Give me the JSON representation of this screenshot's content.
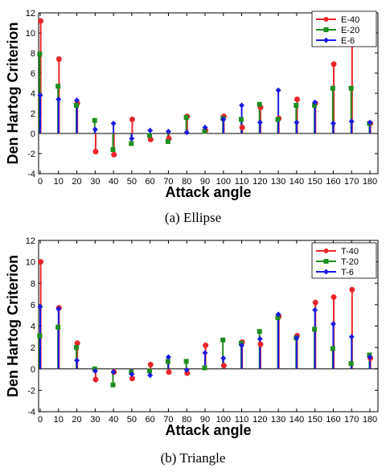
{
  "chart_data": [
    {
      "type": "stem",
      "caption": "(a) Ellipse",
      "xlabel": "Attack angle",
      "ylabel": "Den Hartog Criterion",
      "xlim": [
        0,
        180
      ],
      "ylim": [
        -4,
        12
      ],
      "xticks": [
        0,
        10,
        20,
        30,
        40,
        50,
        60,
        70,
        80,
        90,
        100,
        110,
        120,
        130,
        140,
        150,
        160,
        170,
        180
      ],
      "yticks": [
        -4,
        -2,
        0,
        2,
        4,
        6,
        8,
        10,
        12
      ],
      "legend_position": "top-right",
      "series": [
        {
          "name": "E-40",
          "color": "#e8262b",
          "marker": "circle",
          "offset": 0,
          "x": [
            0,
            10,
            20,
            30,
            40,
            50,
            60,
            70,
            80,
            90,
            100,
            110,
            120,
            130,
            140,
            150,
            160,
            170,
            180
          ],
          "values": [
            11.2,
            7.4,
            3.0,
            -1.8,
            -2.1,
            1.4,
            -0.6,
            -0.5,
            1.7,
            0.3,
            1.7,
            0.6,
            2.6,
            1.5,
            3.4,
            3.0,
            6.9,
            9.0,
            1.0
          ]
        },
        {
          "name": "E-20",
          "color": "#1f8c1f",
          "marker": "square",
          "offset": 0,
          "x": [
            0,
            10,
            20,
            30,
            40,
            50,
            60,
            70,
            80,
            90,
            100,
            110,
            120,
            130,
            140,
            150,
            160,
            170,
            180
          ],
          "values": [
            7.9,
            4.7,
            2.8,
            1.3,
            -1.6,
            -1.0,
            -0.2,
            -0.8,
            1.6,
            0.2,
            1.5,
            1.4,
            2.9,
            1.4,
            2.8,
            2.8,
            4.5,
            4.5,
            1.0
          ]
        },
        {
          "name": "E-6",
          "color": "#1a1ae0",
          "marker": "diamond",
          "offset": 0,
          "x": [
            0,
            10,
            20,
            30,
            40,
            50,
            60,
            70,
            80,
            90,
            100,
            110,
            120,
            130,
            140,
            150,
            160,
            170,
            180
          ],
          "values": [
            3.8,
            3.4,
            3.3,
            0.4,
            1.0,
            -0.5,
            0.3,
            0.2,
            0.1,
            0.6,
            1.4,
            2.8,
            1.1,
            4.3,
            1.1,
            3.1,
            1.0,
            1.2,
            1.1
          ]
        }
      ]
    },
    {
      "type": "stem",
      "caption": "(b) Triangle",
      "xlabel": "Attack angle",
      "ylabel": "Den Hartog Criterion",
      "xlim": [
        0,
        180
      ],
      "ylim": [
        -4,
        12
      ],
      "xticks": [
        0,
        10,
        20,
        30,
        40,
        50,
        60,
        70,
        80,
        90,
        100,
        110,
        120,
        130,
        140,
        150,
        160,
        170,
        180
      ],
      "yticks": [
        -4,
        -2,
        0,
        2,
        4,
        6,
        8,
        10,
        12
      ],
      "legend_position": "top-right",
      "series": [
        {
          "name": "T-40",
          "color": "#e8262b",
          "marker": "circle",
          "offset": 0,
          "x": [
            0,
            10,
            20,
            30,
            40,
            50,
            60,
            70,
            80,
            90,
            100,
            110,
            120,
            130,
            140,
            150,
            160,
            170,
            180
          ],
          "values": [
            10.0,
            5.7,
            2.4,
            -1.0,
            -0.3,
            -0.9,
            0.4,
            -0.3,
            -0.4,
            2.2,
            0.3,
            2.5,
            2.3,
            4.9,
            3.1,
            6.2,
            6.7,
            7.4,
            1.0
          ]
        },
        {
          "name": "T-20",
          "color": "#1f8c1f",
          "marker": "square",
          "offset": 0,
          "x": [
            0,
            10,
            20,
            30,
            40,
            50,
            60,
            70,
            80,
            90,
            100,
            110,
            120,
            130,
            140,
            150,
            160,
            170,
            180
          ],
          "values": [
            3.1,
            3.9,
            2.0,
            0.0,
            -1.5,
            -0.3,
            -0.2,
            0.7,
            0.7,
            0.1,
            2.7,
            2.4,
            3.5,
            4.8,
            2.9,
            3.7,
            1.9,
            0.5,
            1.3
          ]
        },
        {
          "name": "T-6",
          "color": "#1a1ae0",
          "marker": "diamond",
          "offset": 0,
          "x": [
            0,
            10,
            20,
            30,
            40,
            50,
            60,
            70,
            80,
            90,
            100,
            110,
            120,
            130,
            140,
            150,
            160,
            170,
            180
          ],
          "values": [
            5.8,
            5.6,
            0.8,
            -0.2,
            -0.3,
            -0.5,
            -0.6,
            1.1,
            -0.1,
            1.5,
            1.0,
            2.2,
            2.8,
            5.1,
            2.9,
            5.5,
            4.2,
            3.0,
            1.1
          ]
        }
      ]
    }
  ]
}
